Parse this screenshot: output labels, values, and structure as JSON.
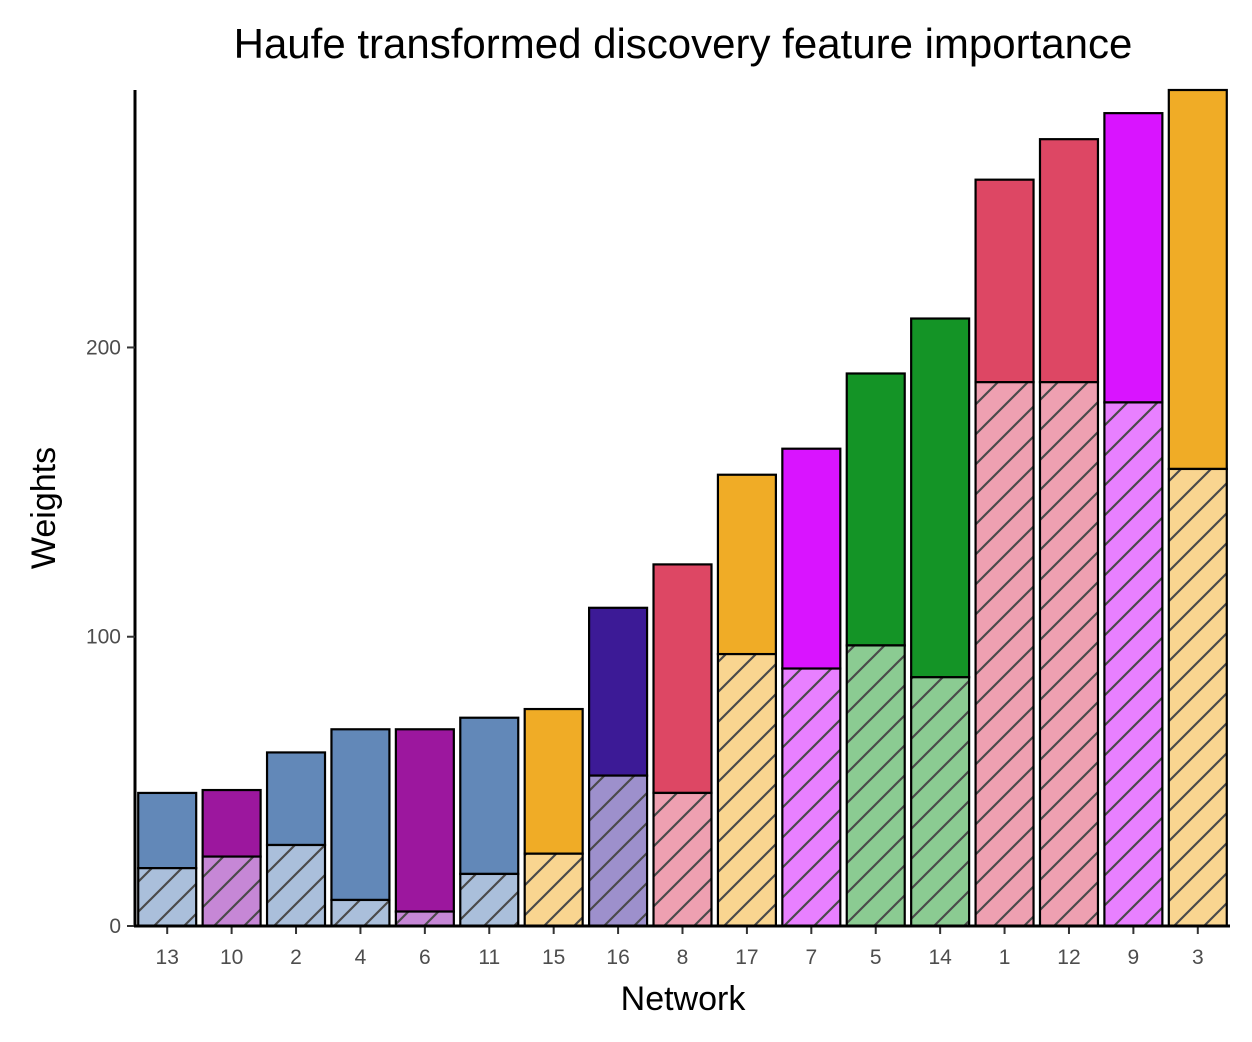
{
  "chart_data": {
    "type": "bar",
    "stacked": true,
    "title": "Haufe transformed discovery feature importance",
    "xlabel": "Network",
    "ylabel": "Weights",
    "ylim": [
      0,
      289
    ],
    "yticks": [
      0,
      100,
      200
    ],
    "categories": [
      "13",
      "10",
      "2",
      "4",
      "6",
      "11",
      "15",
      "16",
      "8",
      "17",
      "7",
      "5",
      "14",
      "1",
      "12",
      "9",
      "3"
    ],
    "series": [
      {
        "pattern": "hatched",
        "values": [
          20,
          24,
          28,
          9,
          5,
          18,
          25,
          52,
          46,
          94,
          89,
          97,
          86,
          188,
          188,
          181,
          158
        ]
      },
      {
        "pattern": "solid",
        "values": [
          26,
          23,
          32,
          59,
          63,
          54,
          50,
          58,
          79,
          62,
          76,
          94,
          124,
          70,
          84,
          100,
          131
        ]
      }
    ],
    "bar_colors": {
      "solid": [
        "#6288b8",
        "#9c179e",
        "#6288b8",
        "#6288b8",
        "#9c179e",
        "#6288b8",
        "#f0ac26",
        "#3c1a96",
        "#dd4764",
        "#f0ac26",
        "#d914ff",
        "#149426",
        "#149426",
        "#dd4764",
        "#dd4764",
        "#d914ff",
        "#f0ac26"
      ],
      "hatched": [
        "#aabfdb",
        "#c687d6",
        "#aabfdb",
        "#aabfdb",
        "#c687d6",
        "#aabfdb",
        "#f9d590",
        "#9d90cc",
        "#eea0b1",
        "#f9d590",
        "#e880ff",
        "#8bcb92",
        "#8bcb92",
        "#eea0b1",
        "#eea0b1",
        "#e880ff",
        "#f9d590"
      ]
    },
    "grid": false,
    "legend": "none"
  }
}
